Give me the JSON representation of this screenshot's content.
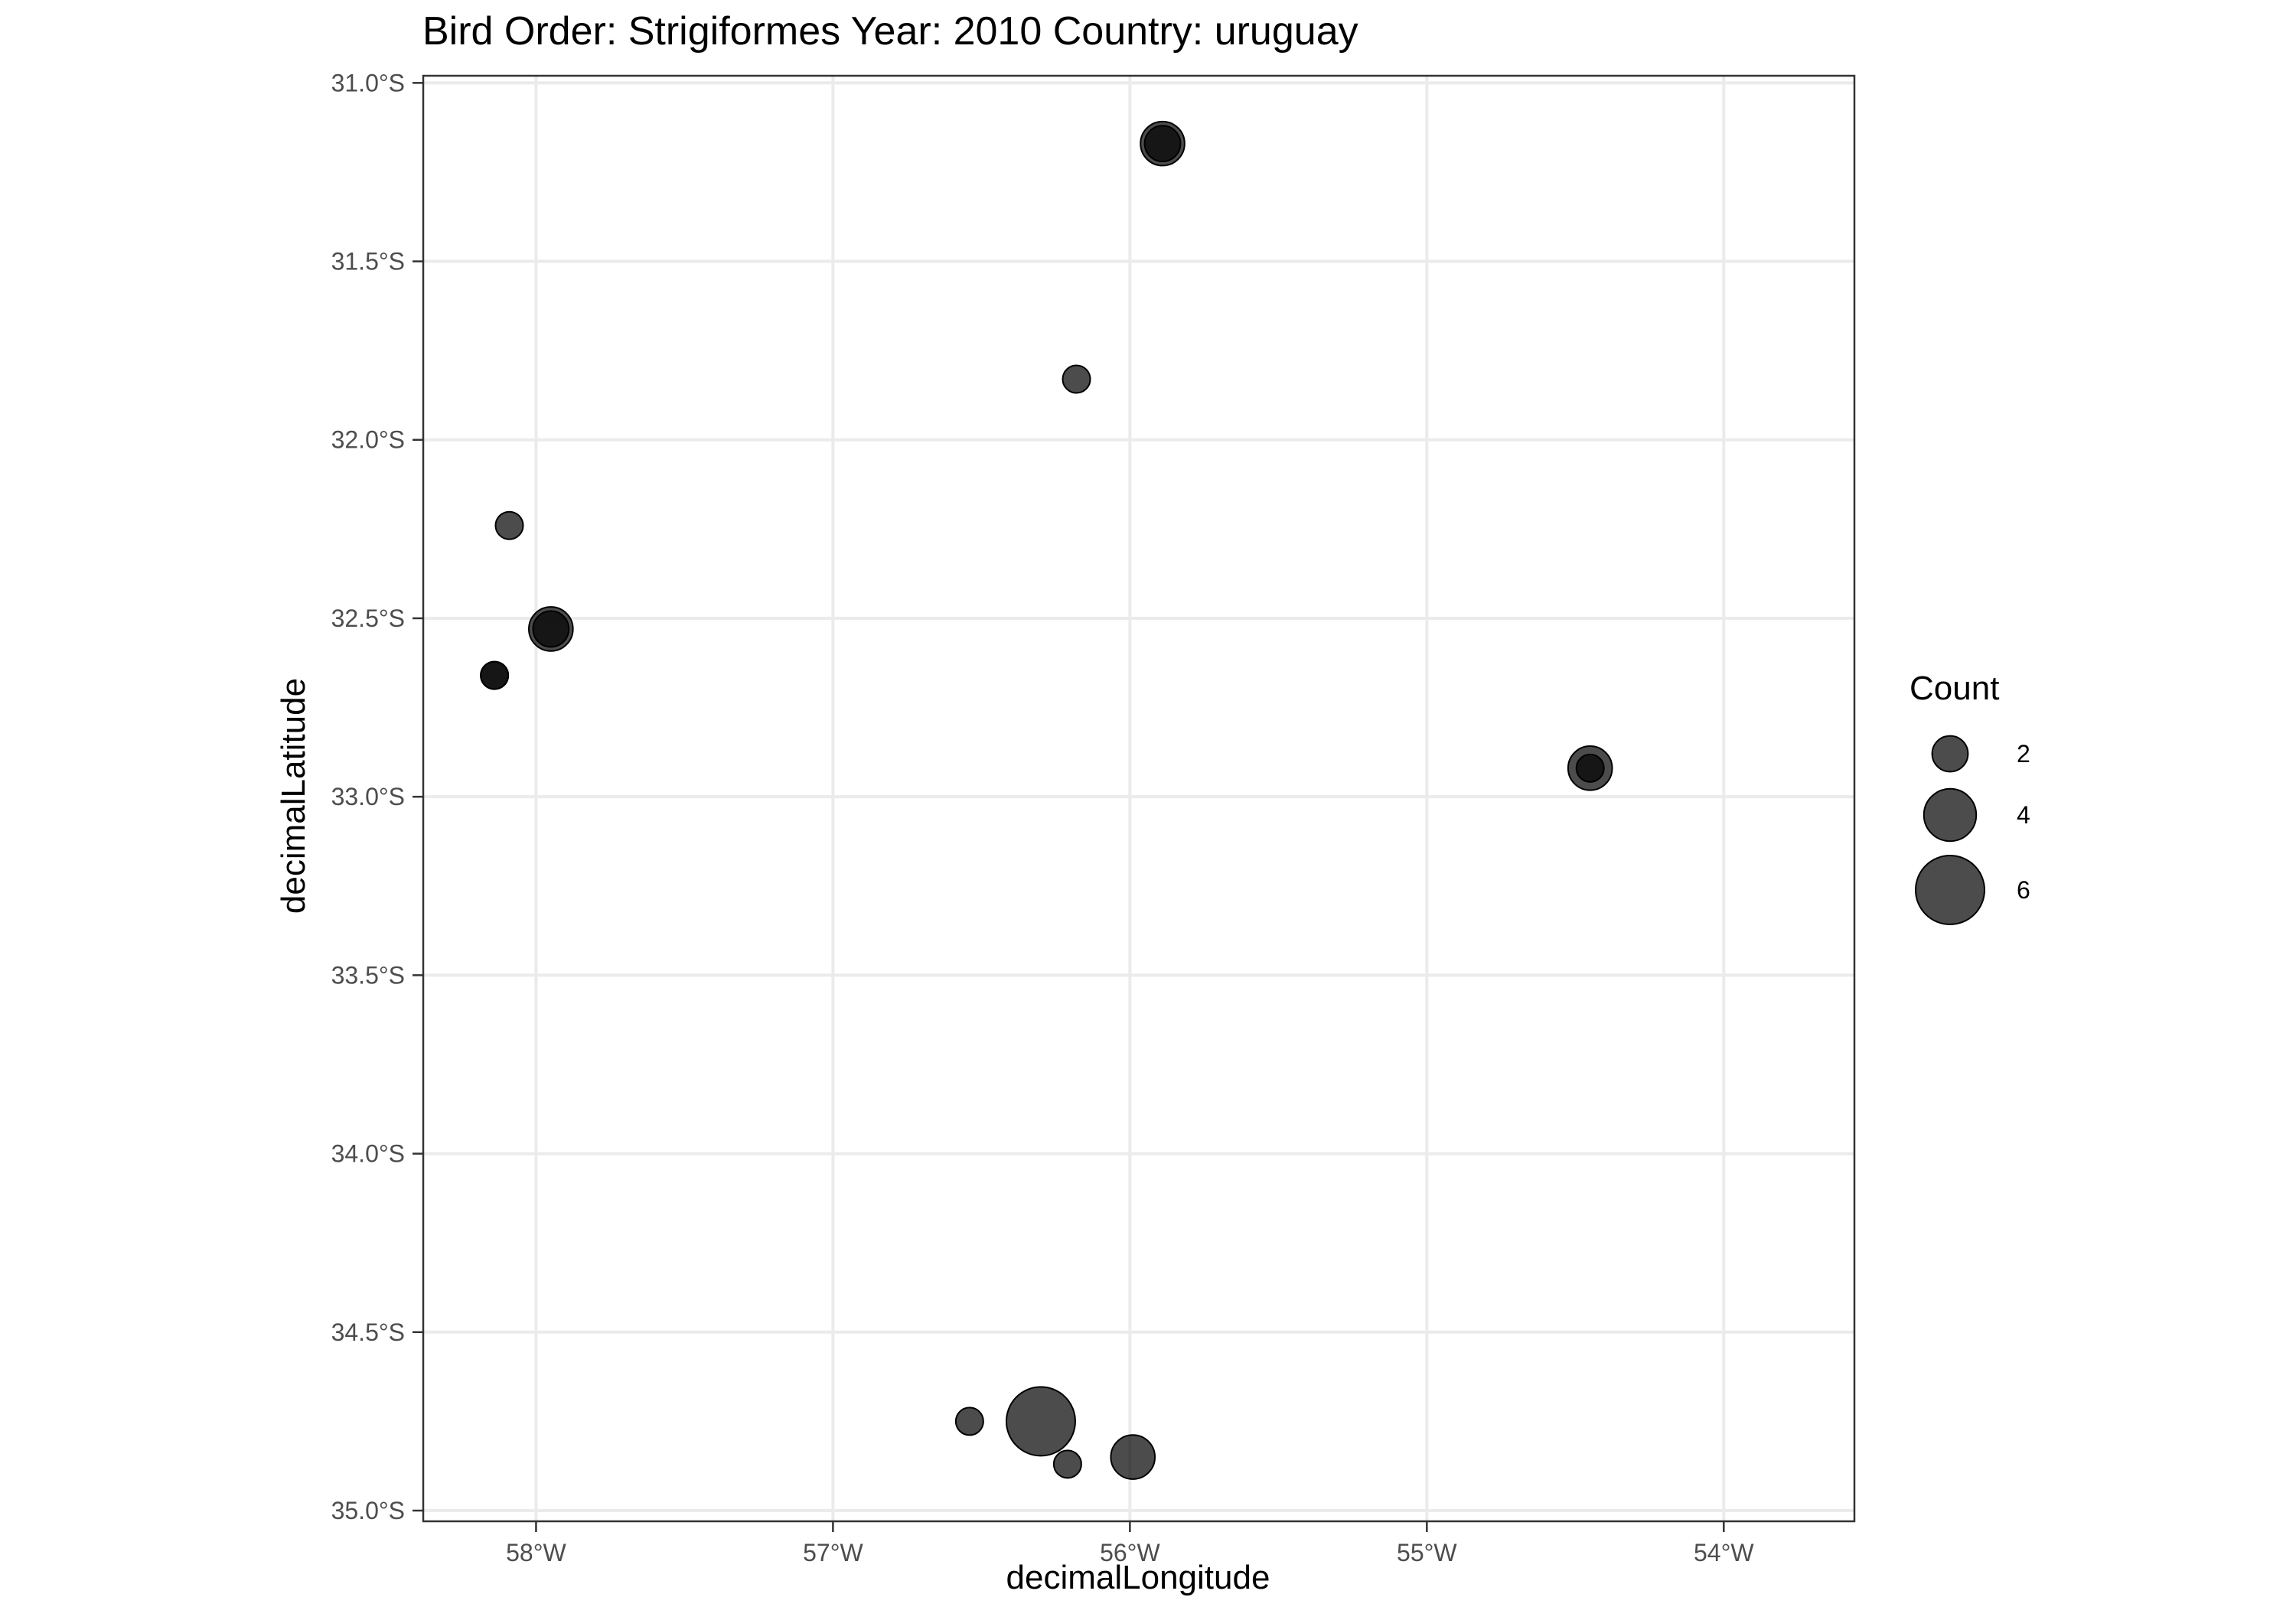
{
  "chart_data": {
    "type": "scatter",
    "title": "Bird Order: Strigiformes Year: 2010 Country: uruguay",
    "xlabel": "decimalLongitude",
    "ylabel": "decimalLatitude",
    "xlim": [
      -58.38,
      -53.56
    ],
    "ylim": [
      -35.03,
      -30.98
    ],
    "y_reversed_display": true,
    "x_ticks": [
      {
        "value": -58,
        "label": "58°W"
      },
      {
        "value": -57,
        "label": "57°W"
      },
      {
        "value": -56,
        "label": "56°W"
      },
      {
        "value": -55,
        "label": "55°W"
      },
      {
        "value": -54,
        "label": "54°W"
      }
    ],
    "y_ticks": [
      {
        "value": -31.0,
        "label": "31.0°S"
      },
      {
        "value": -31.5,
        "label": "31.5°S"
      },
      {
        "value": -32.0,
        "label": "32.0°S"
      },
      {
        "value": -32.5,
        "label": "32.5°S"
      },
      {
        "value": -33.0,
        "label": "33.0°S"
      },
      {
        "value": -33.5,
        "label": "33.5°S"
      },
      {
        "value": -34.0,
        "label": "34.0°S"
      },
      {
        "value": -34.5,
        "label": "34.5°S"
      },
      {
        "value": -35.0,
        "label": "35.0°S"
      }
    ],
    "grid": true,
    "point_color": "#000000",
    "point_alpha": 0.7,
    "size_variable": "Count",
    "points": [
      {
        "x": -55.89,
        "y": -31.17,
        "count": 3
      },
      {
        "x": -55.89,
        "y": -31.17,
        "count": 2
      },
      {
        "x": -56.18,
        "y": -31.83,
        "count": 1
      },
      {
        "x": -58.09,
        "y": -32.24,
        "count": 1
      },
      {
        "x": -57.95,
        "y": -32.53,
        "count": 3
      },
      {
        "x": -57.95,
        "y": -32.53,
        "count": 2
      },
      {
        "x": -58.14,
        "y": -32.66,
        "count": 1
      },
      {
        "x": -58.14,
        "y": -32.66,
        "count": 1
      },
      {
        "x": -54.45,
        "y": -32.92,
        "count": 3
      },
      {
        "x": -54.45,
        "y": -32.92,
        "count": 1
      },
      {
        "x": -56.3,
        "y": -34.75,
        "count": 6
      },
      {
        "x": -56.54,
        "y": -34.75,
        "count": 1
      },
      {
        "x": -56.21,
        "y": -34.87,
        "count": 1
      },
      {
        "x": -55.99,
        "y": -34.85,
        "count": 3
      }
    ],
    "legend": {
      "title": "Count",
      "position": "right",
      "entries": [
        {
          "value": 2,
          "label": "2"
        },
        {
          "value": 4,
          "label": "4"
        },
        {
          "value": 6,
          "label": "6"
        }
      ]
    }
  }
}
